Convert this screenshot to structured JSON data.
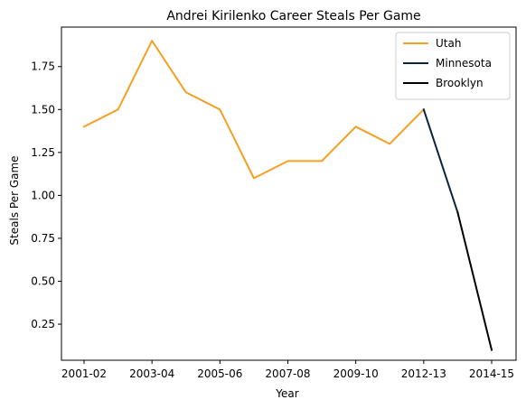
{
  "chart_data": {
    "type": "line",
    "title": "Andrei Kirilenko Career Steals Per Game",
    "xlabel": "Year",
    "ylabel": "Steals Per Game",
    "x_ticks": [
      "2001-02",
      "2003-04",
      "2005-06",
      "2007-08",
      "2009-10",
      "2012-13",
      "2014-15"
    ],
    "ylim": [
      0.04,
      1.98
    ],
    "y_ticks": [
      "0.25",
      "0.50",
      "0.75",
      "1.00",
      "1.25",
      "1.50",
      "1.75"
    ],
    "legend_position": "top-right",
    "grid": false,
    "series": [
      {
        "name": "Utah",
        "color": "#f5a023",
        "points": [
          {
            "season": "2001-02",
            "value": 1.4
          },
          {
            "season": "2002-03",
            "value": 1.5
          },
          {
            "season": "2003-04",
            "value": 1.9
          },
          {
            "season": "2004-05",
            "value": 1.6
          },
          {
            "season": "2005-06",
            "value": 1.5
          },
          {
            "season": "2006-07",
            "value": 1.1
          },
          {
            "season": "2007-08",
            "value": 1.2
          },
          {
            "season": "2008-09",
            "value": 1.2
          },
          {
            "season": "2009-10",
            "value": 1.4
          },
          {
            "season": "2010-11",
            "value": 1.3
          },
          {
            "season": "2012-13",
            "value": 1.5
          }
        ]
      },
      {
        "name": "Minnesota",
        "color": "#0c2340",
        "points": [
          {
            "season": "2012-13",
            "value": 1.5
          },
          {
            "season": "2013-14",
            "value": 0.9
          }
        ]
      },
      {
        "name": "Brooklyn",
        "color": "#000000",
        "points": [
          {
            "season": "2013-14",
            "value": 0.9
          },
          {
            "season": "2014-15",
            "value": 0.1
          }
        ]
      }
    ]
  }
}
